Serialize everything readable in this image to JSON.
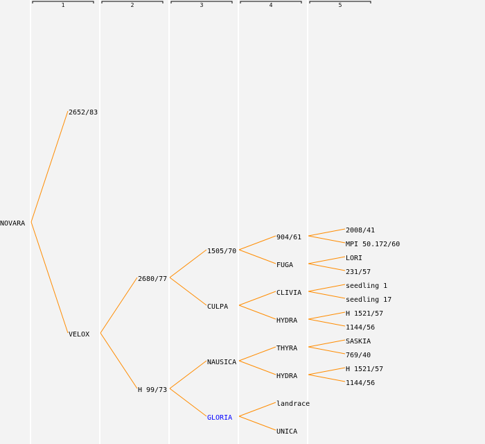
{
  "columns": [
    "1",
    "2",
    "3",
    "4",
    "5"
  ],
  "colors": {
    "line": "#ff8c00",
    "highlight": "#0000ff",
    "text": "#000000",
    "separator": "#ffffff",
    "background": "#f3f3f3"
  },
  "tree": {
    "name": "NOVARA",
    "children": [
      {
        "name": "2652/83"
      },
      {
        "name": "VELOX",
        "children": [
          {
            "name": "2680/77",
            "children": [
              {
                "name": "1505/70",
                "children": [
                  {
                    "name": "904/61",
                    "children": [
                      {
                        "name": "2008/41"
                      },
                      {
                        "name": "MPI 50.172/60"
                      }
                    ]
                  },
                  {
                    "name": "FUGA",
                    "children": [
                      {
                        "name": "LORI"
                      },
                      {
                        "name": "231/57"
                      }
                    ]
                  }
                ]
              },
              {
                "name": "CULPA",
                "children": [
                  {
                    "name": "CLIVIA",
                    "children": [
                      {
                        "name": "seedling 1"
                      },
                      {
                        "name": "seedling 17"
                      }
                    ]
                  },
                  {
                    "name": "HYDRA",
                    "children": [
                      {
                        "name": "H 1521/57"
                      },
                      {
                        "name": "1144/56"
                      }
                    ]
                  }
                ]
              }
            ]
          },
          {
            "name": "H 99/73",
            "children": [
              {
                "name": "NAUSICA",
                "children": [
                  {
                    "name": "THYRA",
                    "children": [
                      {
                        "name": "SASKIA"
                      },
                      {
                        "name": "769/40"
                      }
                    ]
                  },
                  {
                    "name": "HYDRA",
                    "children": [
                      {
                        "name": "H 1521/57"
                      },
                      {
                        "name": "1144/56"
                      }
                    ]
                  }
                ]
              },
              {
                "name": "GLORIA",
                "highlight": true,
                "children": [
                  {
                    "name": "landrace"
                  },
                  {
                    "name": "UNICA"
                  }
                ]
              }
            ]
          }
        ]
      }
    ]
  }
}
